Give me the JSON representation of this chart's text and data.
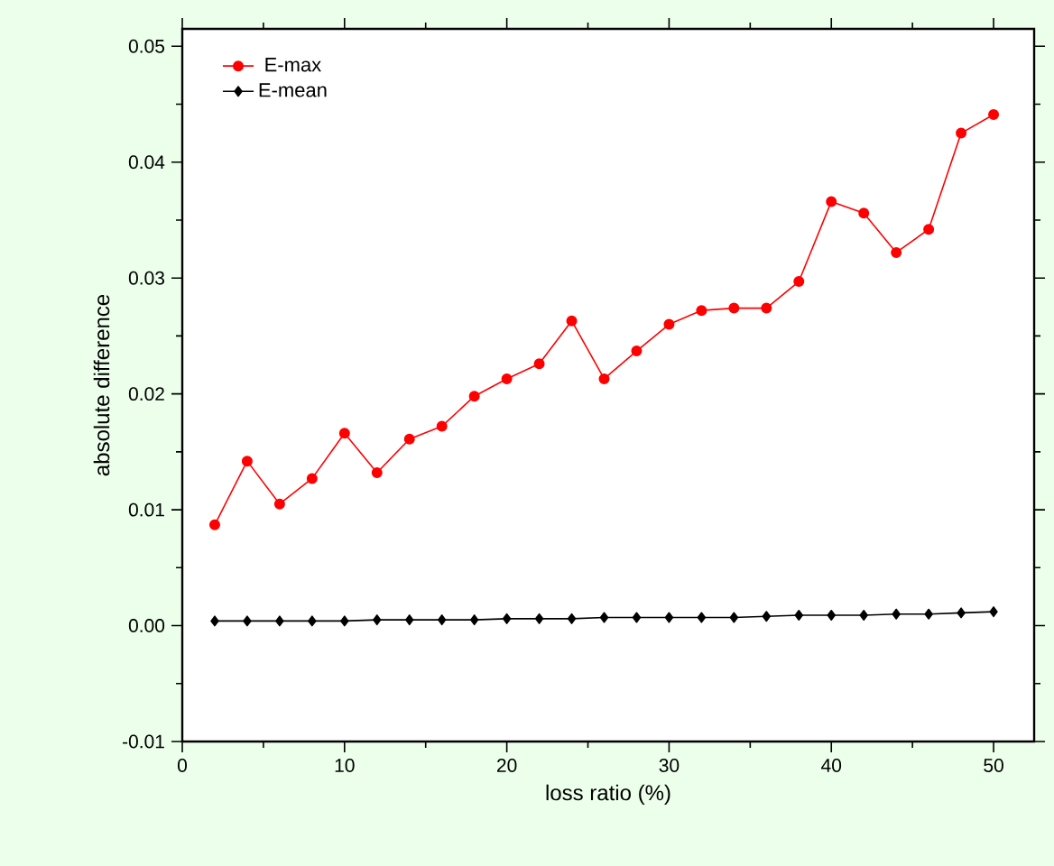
{
  "chart_data": {
    "type": "line",
    "xlabel": "loss ratio (%)",
    "ylabel": "absolute difference",
    "x": [
      2,
      4,
      6,
      8,
      10,
      12,
      14,
      16,
      18,
      20,
      22,
      24,
      26,
      28,
      30,
      32,
      34,
      36,
      38,
      40,
      42,
      44,
      46,
      48,
      50
    ],
    "series": [
      {
        "name": "E-max",
        "color": "#ff0000",
        "marker": "circle",
        "values": [
          0.0087,
          0.0142,
          0.0105,
          0.0127,
          0.0166,
          0.0132,
          0.0161,
          0.0172,
          0.0198,
          0.0213,
          0.0226,
          0.0263,
          0.0213,
          0.0237,
          0.026,
          0.0272,
          0.0274,
          0.0274,
          0.0297,
          0.0366,
          0.0356,
          0.0322,
          0.0342,
          0.0425,
          0.0441
        ]
      },
      {
        "name": "E-mean",
        "color": "#000000",
        "marker": "diamond",
        "values": [
          0.0004,
          0.0004,
          0.0004,
          0.0004,
          0.0004,
          0.0005,
          0.0005,
          0.0005,
          0.0005,
          0.0006,
          0.0006,
          0.0006,
          0.0007,
          0.0007,
          0.0007,
          0.0007,
          0.0007,
          0.0008,
          0.0009,
          0.0009,
          0.0009,
          0.001,
          0.001,
          0.0011,
          0.0012
        ]
      }
    ],
    "xlim": [
      0,
      52.5
    ],
    "ylim": [
      -0.01,
      0.0515
    ],
    "xticks": [
      0,
      10,
      20,
      30,
      40,
      50
    ],
    "yticks": [
      {
        "value": -0.01,
        "label": "-0.01"
      },
      {
        "value": 0,
        "label": "0.00"
      },
      {
        "value": 0.01,
        "label": "0.01"
      },
      {
        "value": 0.02,
        "label": "0.02"
      },
      {
        "value": 0.03,
        "label": "0.03"
      },
      {
        "value": 0.04,
        "label": "0.04"
      },
      {
        "value": 0.05,
        "label": "0.05"
      }
    ],
    "grid": false,
    "legend": "top left",
    "line_style": "solid"
  }
}
